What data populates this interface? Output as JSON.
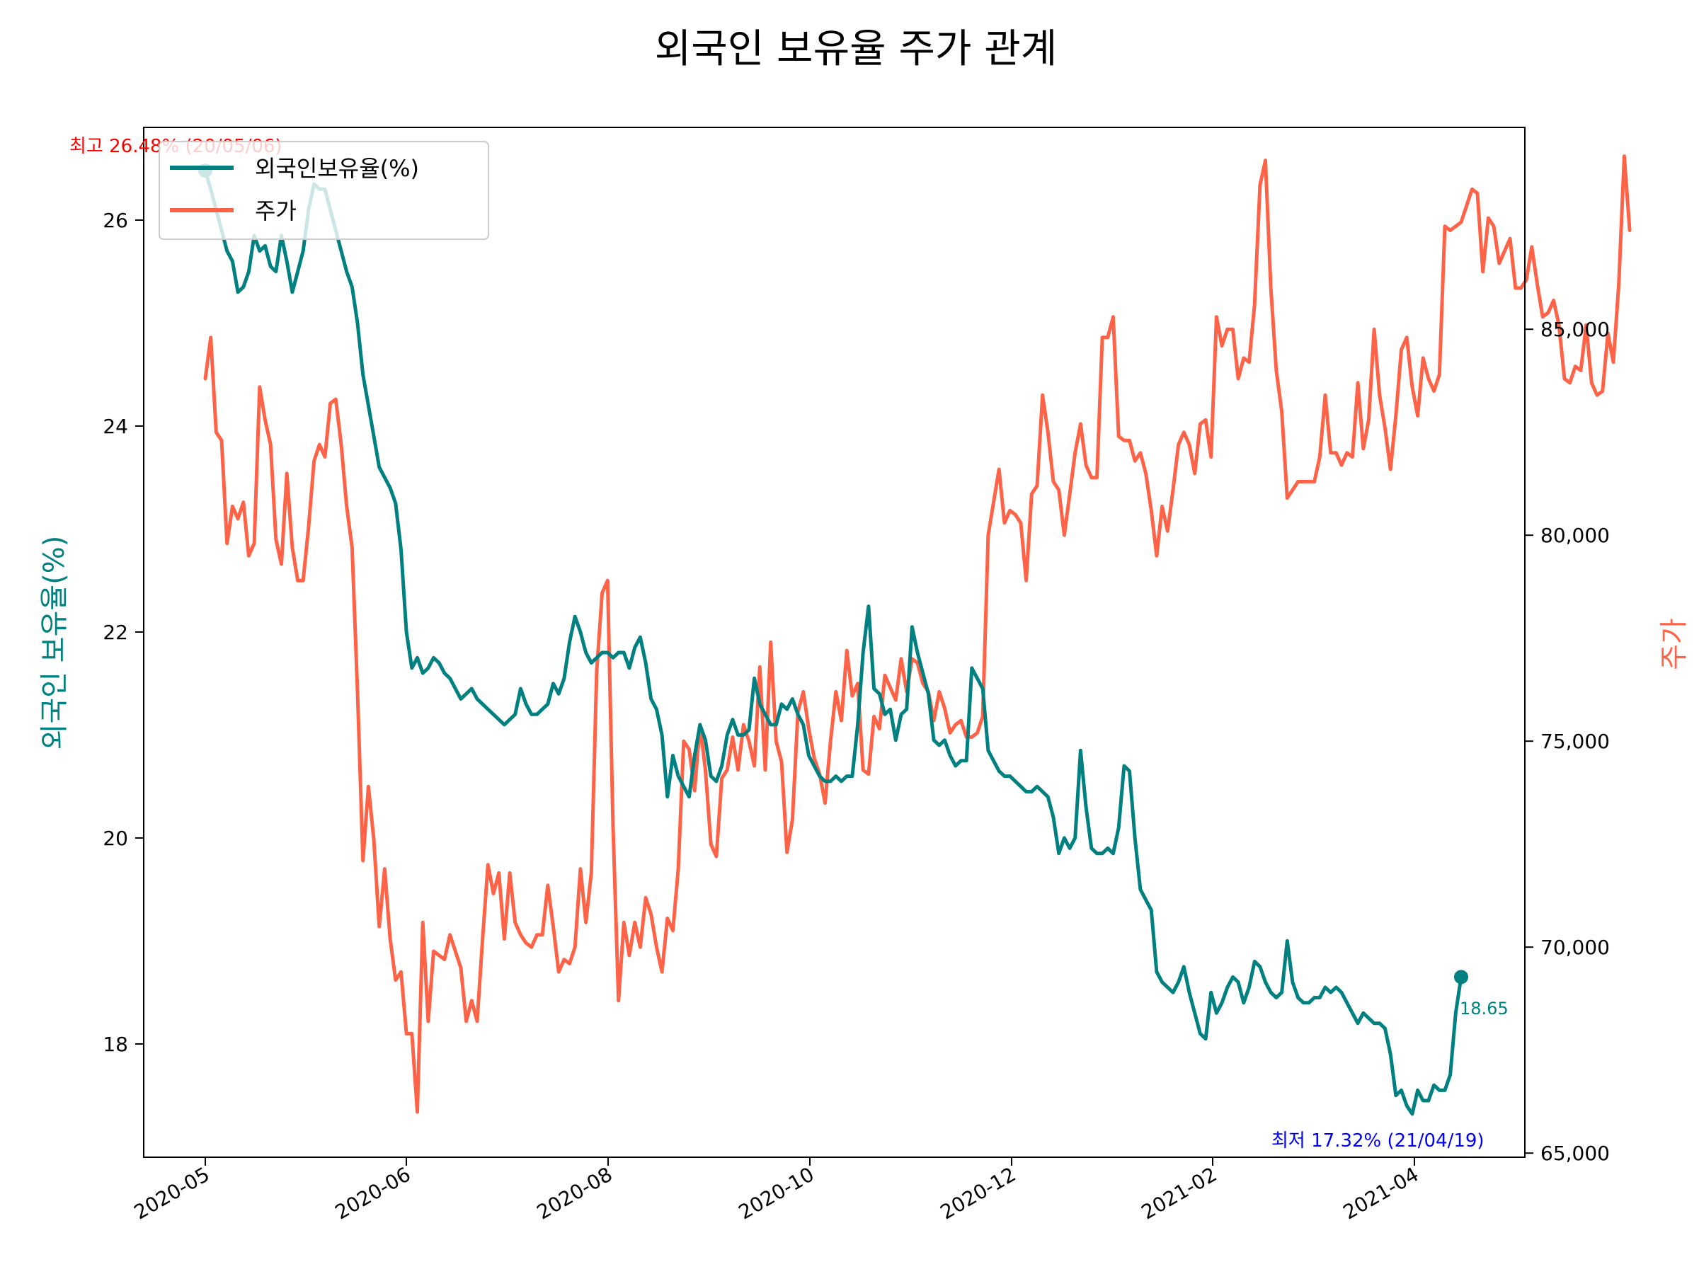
{
  "chart_data": {
    "type": "line",
    "title": "외국인 보유율 주가 관계",
    "ylabel_left": "외국인 보유율(%)",
    "ylabel_right": "주가",
    "x_axis_ticks": [
      "2020-05",
      "2020-06",
      "2020-08",
      "2020-10",
      "2020-12",
      "2021-02",
      "2021-04"
    ],
    "y_left_ticks": [
      "18",
      "20",
      "22",
      "24",
      "26"
    ],
    "y_right_ticks": [
      "65,000",
      "70,000",
      "75,000",
      "80,000",
      "85,000"
    ],
    "ylim_left": [
      16.9,
      26.9
    ],
    "ylim_right": [
      64900,
      89900
    ],
    "legend_position": "upper-left",
    "grid": false,
    "legend": [
      "외국인보유율(%)",
      "주가"
    ],
    "series": [
      {
        "name": "외국인보유율(%)",
        "color": "#008080",
        "values": [
          26.48,
          26.3,
          26.1,
          25.9,
          25.7,
          25.6,
          25.3,
          25.35,
          25.5,
          25.85,
          25.7,
          25.75,
          25.55,
          25.5,
          25.85,
          25.6,
          25.3,
          25.5,
          25.7,
          26.1,
          26.35,
          26.3,
          26.3,
          26.1,
          25.9,
          25.7,
          25.5,
          25.35,
          25.0,
          24.5,
          24.2,
          23.9,
          23.6,
          23.5,
          23.4,
          23.25,
          22.8,
          22.0,
          21.65,
          21.75,
          21.6,
          21.65,
          21.75,
          21.7,
          21.6,
          21.55,
          21.45,
          21.35,
          21.4,
          21.45,
          21.35,
          21.3,
          21.25,
          21.2,
          21.15,
          21.1,
          21.15,
          21.2,
          21.45,
          21.3,
          21.2,
          21.2,
          21.25,
          21.3,
          21.5,
          21.4,
          21.55,
          21.9,
          22.15,
          22.0,
          21.8,
          21.7,
          21.75,
          21.8,
          21.8,
          21.75,
          21.8,
          21.8,
          21.65,
          21.85,
          21.95,
          21.7,
          21.35,
          21.25,
          21.0,
          20.4,
          20.8,
          20.6,
          20.5,
          20.4,
          20.8,
          21.1,
          20.95,
          20.6,
          20.55,
          20.7,
          21.0,
          21.15,
          21.0,
          21.0,
          21.05,
          21.55,
          21.3,
          21.2,
          21.1,
          21.1,
          21.3,
          21.25,
          21.35,
          21.2,
          21.1,
          20.8,
          20.7,
          20.6,
          20.55,
          20.55,
          20.6,
          20.55,
          20.6,
          20.6,
          21.1,
          21.8,
          22.25,
          21.45,
          21.4,
          21.2,
          21.25,
          20.95,
          21.2,
          21.25,
          22.05,
          21.8,
          21.6,
          21.4,
          20.95,
          20.9,
          20.95,
          20.8,
          20.7,
          20.75,
          20.75,
          21.65,
          21.55,
          21.45,
          20.85,
          20.75,
          20.65,
          20.6,
          20.6,
          20.55,
          20.5,
          20.45,
          20.45,
          20.5,
          20.45,
          20.4,
          20.2,
          19.85,
          20.0,
          19.9,
          20.0,
          20.85,
          20.3,
          19.9,
          19.85,
          19.85,
          19.9,
          19.85,
          20.1,
          20.7,
          20.65,
          20.0,
          19.5,
          19.4,
          19.3,
          18.7,
          18.6,
          18.55,
          18.5,
          18.6,
          18.75,
          18.5,
          18.3,
          18.1,
          18.05,
          18.5,
          18.3,
          18.4,
          18.55,
          18.65,
          18.6,
          18.4,
          18.55,
          18.8,
          18.75,
          18.6,
          18.5,
          18.45,
          18.5,
          19.0,
          18.6,
          18.45,
          18.4,
          18.4,
          18.45,
          18.45,
          18.55,
          18.5,
          18.55,
          18.5,
          18.4,
          18.3,
          18.2,
          18.3,
          18.25,
          18.2,
          18.2,
          18.15,
          17.9,
          17.5,
          17.55,
          17.4,
          17.32,
          17.55,
          17.45,
          17.45,
          17.6,
          17.55,
          17.55,
          17.7,
          18.3,
          18.65
        ]
      },
      {
        "name": "주가",
        "color": "#FF6347",
        "values": [
          83800,
          84800,
          82500,
          82300,
          79800,
          80700,
          80400,
          80800,
          79500,
          79800,
          83600,
          82800,
          82200,
          79900,
          79300,
          81500,
          79700,
          78900,
          78900,
          80200,
          81800,
          82200,
          81900,
          83200,
          83300,
          82200,
          80700,
          79700,
          76200,
          72100,
          73900,
          72600,
          70500,
          71900,
          70200,
          69200,
          69400,
          67900,
          67900,
          66000,
          70600,
          68200,
          69900,
          69800,
          69700,
          70300,
          69900,
          69500,
          68200,
          68700,
          68200,
          70200,
          72000,
          71300,
          71800,
          70200,
          71800,
          70600,
          70300,
          70100,
          70000,
          70300,
          70300,
          71500,
          70500,
          69400,
          69700,
          69600,
          70000,
          71900,
          70600,
          71800,
          76700,
          78600,
          78900,
          72900,
          68700,
          70600,
          69800,
          70600,
          70000,
          71200,
          70800,
          70000,
          69400,
          70700,
          70400,
          71900,
          75000,
          74800,
          73800,
          75400,
          74300,
          72500,
          72200,
          74100,
          74300,
          75100,
          74300,
          75400,
          75000,
          74400,
          76800,
          74300,
          77400,
          75000,
          74500,
          72300,
          73100,
          75700,
          76200,
          75300,
          74600,
          74200,
          73500,
          75000,
          76200,
          75500,
          77200,
          76100,
          76400,
          74300,
          74200,
          75600,
          75300,
          76600,
          76300,
          76000,
          77000,
          76200,
          77000,
          76900,
          76400,
          76200,
          75500,
          76200,
          75800,
          75200,
          75400,
          75500,
          75100,
          75100,
          75200,
          75600,
          80000,
          80800,
          81600,
          80300,
          80600,
          80500,
          80300,
          78900,
          81000,
          81200,
          83400,
          82500,
          81300,
          81100,
          80000,
          81000,
          82000,
          82700,
          81700,
          81400,
          81400,
          84800,
          84800,
          85300,
          82400,
          82300,
          82300,
          81800,
          82000,
          81500,
          80600,
          79500,
          80700,
          80100,
          81100,
          82200,
          82500,
          82200,
          81500,
          82700,
          82800,
          81900,
          85300,
          84600,
          85000,
          85000,
          83800,
          84300,
          84200,
          85600,
          88500,
          89100,
          86000,
          84000,
          83000,
          80900,
          81100,
          81300,
          81300,
          81300,
          81300,
          81900,
          83400,
          82000,
          82000,
          81700,
          82000,
          81900,
          83700,
          82100,
          82800,
          85000,
          83400,
          82600,
          81600,
          82900,
          84500,
          84800,
          83600,
          82900,
          84300,
          83800,
          83500,
          83900,
          87500,
          87400,
          87500,
          87600,
          88000,
          88400,
          88300,
          86400,
          87700,
          87500,
          86600,
          86900,
          87200,
          86000,
          86000,
          86200,
          87000,
          86100,
          85300,
          85400,
          85700,
          85100,
          83800,
          83700,
          84100,
          84000,
          85100,
          83700,
          83400,
          83500,
          84900,
          84200,
          86100,
          89200,
          87400
        ]
      }
    ],
    "annotations": {
      "max_label": "최고 26.48% (20/05/06)",
      "min_label": "최저 17.32% (21/04/19)",
      "last_label": "18.65"
    }
  }
}
